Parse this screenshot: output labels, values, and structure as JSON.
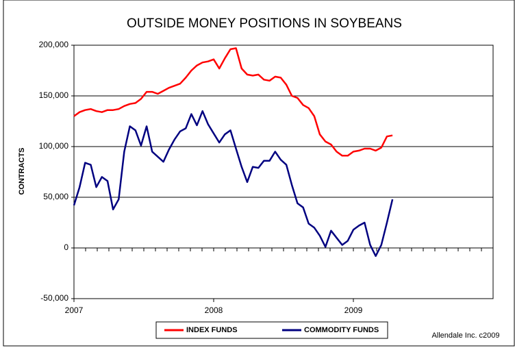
{
  "chart_data": {
    "type": "line",
    "title": "OUTSIDE MONEY POSITIONS IN SOYBEANS",
    "y_label": "CONTRACTS",
    "annotation": "Allendale Inc. c2009",
    "x": [
      2007.0,
      2007.04,
      2007.08,
      2007.12,
      2007.16,
      2007.2,
      2007.24,
      2007.28,
      2007.32,
      2007.36,
      2007.4,
      2007.44,
      2007.48,
      2007.52,
      2007.56,
      2007.6,
      2007.64,
      2007.68,
      2007.72,
      2007.76,
      2007.8,
      2007.84,
      2007.88,
      2007.92,
      2007.96,
      2008.0,
      2008.04,
      2008.08,
      2008.12,
      2008.16,
      2008.2,
      2008.24,
      2008.28,
      2008.32,
      2008.36,
      2008.4,
      2008.44,
      2008.48,
      2008.52,
      2008.56,
      2008.6,
      2008.64,
      2008.68,
      2008.72,
      2008.76,
      2008.8,
      2008.84,
      2008.88,
      2008.92,
      2008.96,
      2009.0,
      2009.04,
      2009.08,
      2009.12,
      2009.16,
      2009.2,
      2009.24,
      2009.28
    ],
    "series": [
      {
        "name": "INDEX FUNDS",
        "color": "#ff0000",
        "values": [
          130000,
          134000,
          136000,
          137000,
          135000,
          134000,
          136000,
          136000,
          137000,
          140000,
          142000,
          143000,
          147000,
          154000,
          154000,
          152000,
          155000,
          158000,
          160000,
          162000,
          168000,
          175000,
          180000,
          183000,
          184000,
          186000,
          177000,
          187000,
          196000,
          197000,
          177000,
          171000,
          170000,
          171000,
          166000,
          165000,
          169000,
          168000,
          161000,
          150000,
          148000,
          141000,
          138000,
          130000,
          112000,
          105000,
          102000,
          95000,
          91000,
          91000,
          95000,
          96000,
          98000,
          98000,
          96000,
          99000,
          110000,
          111000
        ]
      },
      {
        "name": "COMMODITY FUNDS",
        "color": "#000080",
        "values": [
          42000,
          60000,
          84000,
          82000,
          60000,
          70000,
          66000,
          38000,
          48000,
          95000,
          120000,
          116000,
          101000,
          120000,
          95000,
          90000,
          85000,
          97000,
          107000,
          115000,
          118000,
          132000,
          121000,
          135000,
          122000,
          113000,
          104000,
          112000,
          116000,
          98000,
          80000,
          65000,
          80000,
          79000,
          86000,
          86000,
          95000,
          87000,
          82000,
          62000,
          44000,
          40000,
          24000,
          20000,
          12000,
          1000,
          17000,
          10000,
          3000,
          7000,
          18000,
          22000,
          25000,
          3000,
          -8000,
          3000,
          25000,
          48000
        ]
      }
    ],
    "xlim": [
      2007,
      2010
    ],
    "xticks": [
      2007,
      2008,
      2009
    ],
    "ylim": [
      -50000,
      200000
    ],
    "yticks": [
      {
        "value": -50000,
        "label": "-50,000"
      },
      0,
      {
        "value": 50000,
        "label": "50,000"
      },
      {
        "value": 100000,
        "label": "100,000"
      },
      {
        "value": 150000,
        "label": "150,000"
      },
      {
        "value": 200000,
        "label": "200,000"
      }
    ],
    "grid": true
  }
}
